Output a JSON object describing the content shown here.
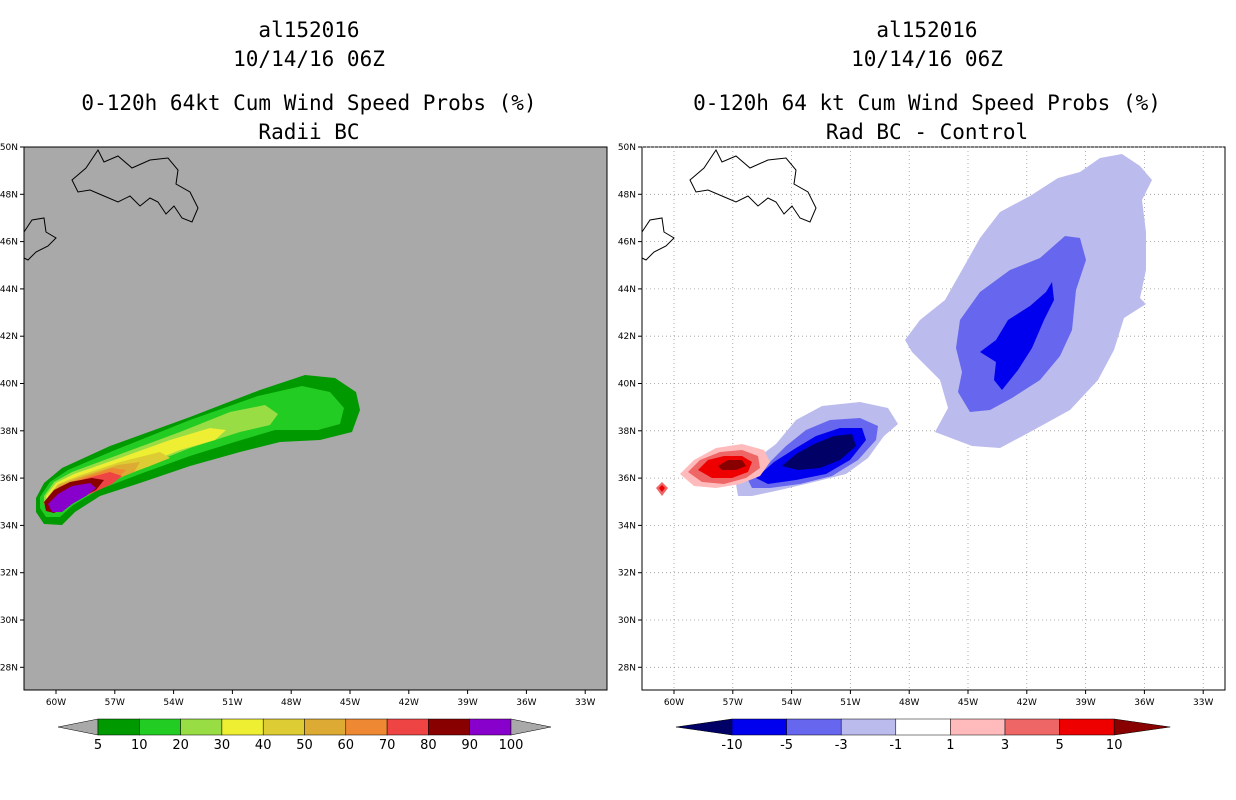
{
  "left_panel": {
    "title_line1": "al152016",
    "title_line2": "10/14/16 06Z",
    "title_line3": "0-120h 64kt Cum Wind Speed Probs (%)",
    "title_line4": "Radii BC",
    "background_color": "#a9a9a9",
    "legend": {
      "labels": [
        "5",
        "10",
        "20",
        "30",
        "40",
        "50",
        "60",
        "70",
        "80",
        "90",
        "100"
      ],
      "colors": [
        "#009900",
        "#22cc22",
        "#99dd44",
        "#eeee33",
        "#ddcc33",
        "#ddaa33",
        "#ee8833",
        "#ee4444",
        "#880000",
        "#8800cc"
      ]
    }
  },
  "right_panel": {
    "title_line1": "al152016",
    "title_line2": "10/14/16 06Z",
    "title_line3": "0-120h 64 kt Cum Wind Speed Probs (%)",
    "title_line4": "Rad BC - Control",
    "background_color": "#ffffff",
    "legend": {
      "labels": [
        "-10",
        "-5",
        "-3",
        "-1",
        "1",
        "3",
        "5",
        "10"
      ],
      "colors": [
        "#000066",
        "#0000ee",
        "#6666ee",
        "#bbbbee",
        "#ffffff",
        "#ffbbbb",
        "#ee6666",
        "#ee0000",
        "#880000"
      ]
    }
  },
  "axes": {
    "lat_labels": [
      "50N",
      "48N",
      "46N",
      "44N",
      "42N",
      "40N",
      "38N",
      "36N",
      "34N",
      "32N",
      "30N",
      "28N"
    ],
    "lon_labels": [
      "60W",
      "57W",
      "54W",
      "51W",
      "48W",
      "45W",
      "42W",
      "39W",
      "36W",
      "33W"
    ]
  }
}
